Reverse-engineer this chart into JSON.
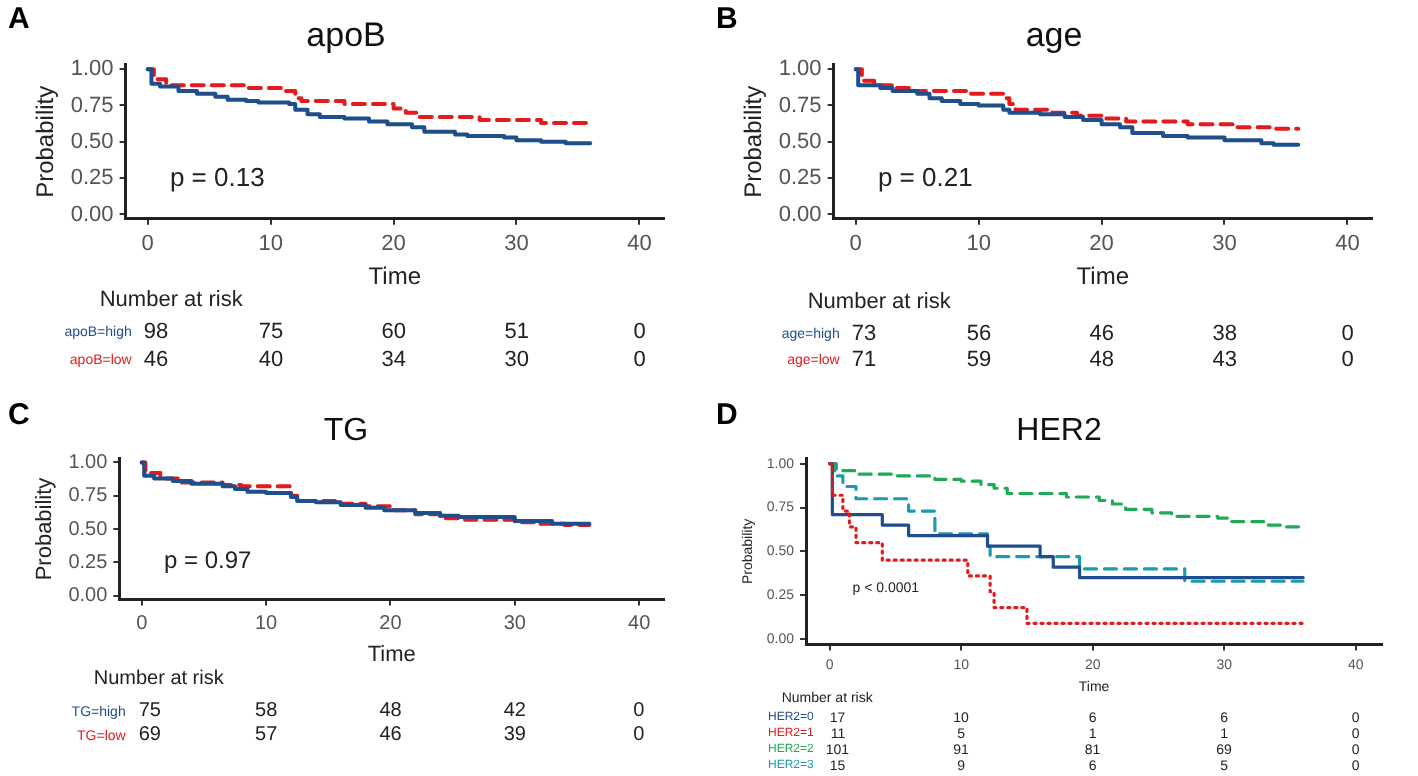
{
  "chart_data": [
    {
      "type": "step",
      "title": "apoB",
      "xlabel": "Time",
      "ylabel": "Probability",
      "grid": false,
      "legend": false,
      "xlim": [
        -1.8,
        42
      ],
      "xticks": [
        0,
        10,
        20,
        30,
        40
      ],
      "ylim": [
        -0.03,
        1.03
      ],
      "yticks": [
        {
          "value": 0,
          "label": "0.00"
        },
        {
          "value": 0.25,
          "label": "0.25"
        },
        {
          "value": 0.5,
          "label": "0.50"
        },
        {
          "value": 0.75,
          "label": "0.75"
        },
        {
          "value": 1,
          "label": "1.00"
        }
      ],
      "series": [
        {
          "name": "apoB=high",
          "color": "#1f4e8c",
          "line_style": "solid",
          "x": [
            0,
            0.3,
            1,
            2.5,
            4,
            5.5,
            6.5,
            8,
            9,
            11.5,
            12,
            13,
            14,
            16,
            18,
            19.5,
            21.5,
            22.5,
            25,
            26,
            29,
            30,
            32,
            34,
            36
          ],
          "values": [
            1,
            0.9,
            0.88,
            0.85,
            0.83,
            0.81,
            0.79,
            0.78,
            0.77,
            0.76,
            0.72,
            0.69,
            0.67,
            0.66,
            0.64,
            0.62,
            0.6,
            0.57,
            0.55,
            0.54,
            0.53,
            0.51,
            0.5,
            0.49,
            0.49
          ]
        },
        {
          "name": "apoB=low",
          "color": "#e41a1c",
          "line_style": "dashed",
          "x": [
            0,
            0.5,
            1.5,
            8,
            11,
            12,
            12.5,
            16,
            20,
            21,
            22,
            27,
            32,
            36
          ],
          "values": [
            1,
            0.93,
            0.89,
            0.87,
            0.85,
            0.8,
            0.78,
            0.76,
            0.73,
            0.7,
            0.67,
            0.65,
            0.63,
            0.63
          ]
        }
      ],
      "annotations": [
        "A",
        "p = 0.13",
        "Number at risk",
        "98",
        "75",
        "60",
        "51",
        "0",
        "46",
        "40",
        "34",
        "30",
        "0"
      ]
    },
    {
      "type": "step",
      "title": "age",
      "xlabel": "Time",
      "ylabel": "Probability",
      "grid": false,
      "legend": false,
      "xlim": [
        -1.8,
        42
      ],
      "xticks": [
        0,
        10,
        20,
        30,
        40
      ],
      "ylim": [
        -0.03,
        1.03
      ],
      "yticks": [
        {
          "value": 0,
          "label": "0.00"
        },
        {
          "value": 0.25,
          "label": "0.25"
        },
        {
          "value": 0.5,
          "label": "0.50"
        },
        {
          "value": 0.75,
          "label": "0.75"
        },
        {
          "value": 1,
          "label": "1.00"
        }
      ],
      "series": [
        {
          "name": "age=high",
          "color": "#1f4e8c",
          "line_style": "solid",
          "x": [
            0,
            0.2,
            2,
            3,
            5,
            6,
            7,
            8.5,
            10,
            12,
            12.5,
            15,
            17,
            18.5,
            20,
            21.5,
            22.5,
            25,
            27,
            30,
            33,
            34,
            36
          ],
          "values": [
            1,
            0.89,
            0.87,
            0.85,
            0.83,
            0.8,
            0.78,
            0.76,
            0.75,
            0.72,
            0.7,
            0.69,
            0.67,
            0.65,
            0.62,
            0.6,
            0.56,
            0.54,
            0.53,
            0.51,
            0.49,
            0.48,
            0.48
          ]
        },
        {
          "name": "age=low",
          "color": "#e41a1c",
          "line_style": "dashed",
          "x": [
            0,
            0.5,
            1.5,
            3,
            4.5,
            9,
            12,
            12.5,
            13,
            16,
            18,
            20,
            22,
            27,
            31,
            34,
            36
          ],
          "values": [
            1,
            0.92,
            0.89,
            0.87,
            0.85,
            0.83,
            0.8,
            0.76,
            0.72,
            0.7,
            0.68,
            0.66,
            0.64,
            0.62,
            0.6,
            0.59,
            0.59
          ]
        }
      ],
      "annotations": [
        "B",
        "p = 0.21",
        "Number at risk",
        "73",
        "56",
        "46",
        "38",
        "0",
        "71",
        "59",
        "48",
        "43",
        "0"
      ]
    },
    {
      "type": "step",
      "title": "TG",
      "xlabel": "Time",
      "ylabel": "Probability",
      "grid": false,
      "legend": false,
      "xlim": [
        -1.8,
        42
      ],
      "xticks": [
        0,
        10,
        20,
        30,
        40
      ],
      "ylim": [
        -0.03,
        1.03
      ],
      "yticks": [
        {
          "value": 0,
          "label": "0.00"
        },
        {
          "value": 0.25,
          "label": "0.25"
        },
        {
          "value": 0.5,
          "label": "0.50"
        },
        {
          "value": 0.75,
          "label": "0.75"
        },
        {
          "value": 1,
          "label": "1.00"
        }
      ],
      "series": [
        {
          "name": "TG=high",
          "color": "#1f4e8c",
          "line_style": "solid",
          "x": [
            0,
            0.2,
            1,
            2.5,
            4,
            6.5,
            7.5,
            8.5,
            10,
            12,
            12.5,
            14,
            16,
            18,
            19.5,
            22,
            24,
            25.5,
            30,
            33,
            36
          ],
          "values": [
            1,
            0.9,
            0.88,
            0.86,
            0.84,
            0.82,
            0.8,
            0.78,
            0.77,
            0.74,
            0.71,
            0.7,
            0.68,
            0.66,
            0.64,
            0.62,
            0.6,
            0.59,
            0.56,
            0.54,
            0.54
          ]
        },
        {
          "name": "TG=low",
          "color": "#e41a1c",
          "line_style": "dashed",
          "x": [
            0,
            0.3,
            1.5,
            3,
            6.5,
            8,
            12,
            12.5,
            16,
            18,
            20,
            22,
            24,
            26,
            30,
            32,
            34,
            36
          ],
          "values": [
            1,
            0.92,
            0.88,
            0.85,
            0.83,
            0.82,
            0.75,
            0.71,
            0.69,
            0.67,
            0.64,
            0.61,
            0.58,
            0.57,
            0.55,
            0.54,
            0.53,
            0.53
          ]
        }
      ],
      "annotations": [
        "C",
        "p = 0.97",
        "Number at risk",
        "75",
        "58",
        "48",
        "42",
        "0",
        "69",
        "57",
        "46",
        "39",
        "0"
      ]
    },
    {
      "type": "step",
      "title": "HER2",
      "xlabel": "Time",
      "ylabel": "Probability",
      "grid": false,
      "legend": false,
      "xlim": [
        -1.8,
        42
      ],
      "xticks": [
        0,
        10,
        20,
        30,
        40
      ],
      "ylim": [
        -0.03,
        1.03
      ],
      "yticks": [
        {
          "value": 0,
          "label": "0.00"
        },
        {
          "value": 0.25,
          "label": "0.25"
        },
        {
          "value": 0.5,
          "label": "0.50"
        },
        {
          "value": 0.75,
          "label": "0.75"
        },
        {
          "value": 1,
          "label": "1.00"
        }
      ],
      "series": [
        {
          "name": "HER2=0",
          "color": "#1f4e8c",
          "line_style": "solid",
          "x": [
            0,
            0.2,
            4,
            6,
            12,
            16,
            17,
            19,
            36
          ],
          "values": [
            1,
            0.71,
            0.65,
            0.59,
            0.53,
            0.47,
            0.41,
            0.35,
            0.35
          ]
        },
        {
          "name": "HER2=1",
          "color": "#e41a1c",
          "line_style": "dotted",
          "x": [
            0,
            0.2,
            1,
            1.5,
            2,
            4,
            10.5,
            12.2,
            12.5,
            15,
            36
          ],
          "values": [
            1,
            0.82,
            0.73,
            0.64,
            0.55,
            0.45,
            0.36,
            0.27,
            0.18,
            0.09,
            0.09
          ]
        },
        {
          "name": "HER2=2",
          "color": "#1faa55",
          "line_style": "dashed",
          "x": [
            0,
            0.3,
            2,
            5,
            8,
            10,
            11.5,
            12.5,
            13.5,
            18,
            20.5,
            21.5,
            22.5,
            24.5,
            26,
            29.5,
            30.5,
            33,
            34.5,
            36
          ],
          "values": [
            1,
            0.96,
            0.94,
            0.93,
            0.91,
            0.9,
            0.88,
            0.86,
            0.83,
            0.81,
            0.79,
            0.77,
            0.74,
            0.72,
            0.7,
            0.69,
            0.67,
            0.65,
            0.64,
            0.64
          ]
        },
        {
          "name": "HER2=3",
          "color": "#1a9bb0",
          "line_style": "dashed",
          "x": [
            0,
            0.5,
            1,
            2,
            6,
            8,
            12,
            12.2,
            19,
            27,
            36
          ],
          "values": [
            1,
            0.93,
            0.87,
            0.8,
            0.73,
            0.6,
            0.53,
            0.47,
            0.4,
            0.33,
            0.33
          ]
        }
      ],
      "annotations": [
        "D",
        "p < 0.0001",
        "Number at risk",
        "17",
        "10",
        "6",
        "6",
        "0",
        "11",
        "5",
        "1",
        "1",
        "0",
        "101",
        "91",
        "81",
        "69",
        "0",
        "15",
        "9",
        "6",
        "5",
        "0"
      ]
    }
  ]
}
